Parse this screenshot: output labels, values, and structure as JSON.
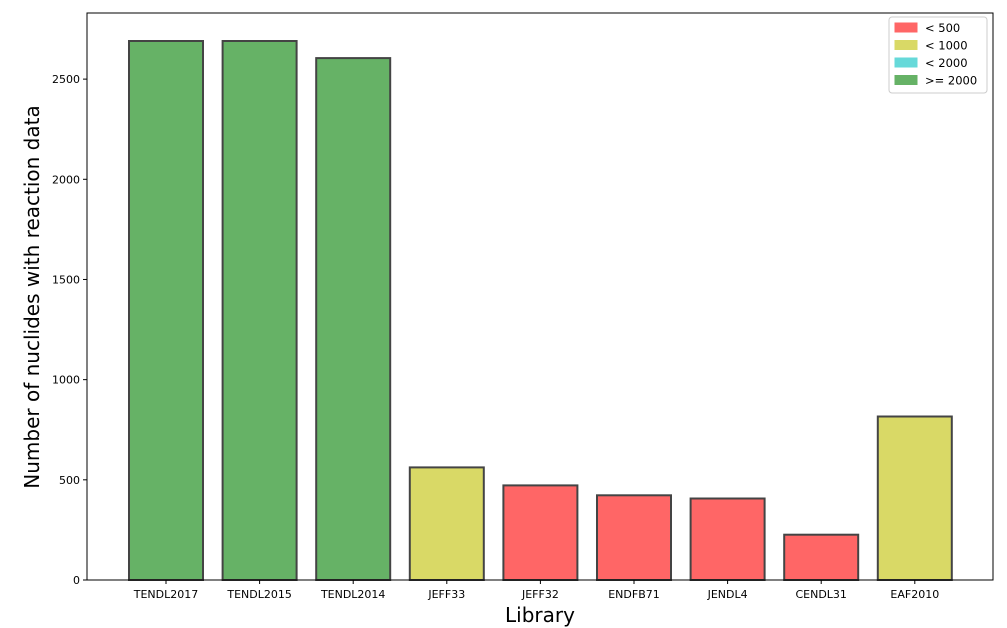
{
  "chart_data": {
    "type": "bar",
    "title": "",
    "xlabel": "Library",
    "ylabel": "Number of nuclides with reaction data",
    "categories": [
      "TENDL2017",
      "TENDL2015",
      "TENDL2014",
      "JEFF33",
      "JEFF32",
      "ENDFB71",
      "JENDL4",
      "CENDL31",
      "EAF2010"
    ],
    "values": [
      2690,
      2690,
      2605,
      562,
      472,
      423,
      407,
      226,
      816
    ],
    "bar_groups": [
      ">= 2000",
      ">= 2000",
      ">= 2000",
      "< 1000",
      "< 500",
      "< 500",
      "< 500",
      "< 500",
      "< 1000"
    ],
    "ylim": [
      0,
      2830
    ],
    "yticks": [
      0,
      500,
      1000,
      1500,
      2000,
      2500
    ],
    "grid": false,
    "legend_position": "top-right",
    "legend": [
      {
        "label": "< 500",
        "color": "#ff6666"
      },
      {
        "label": "< 1000",
        "color": "#d9d966"
      },
      {
        "label": "< 2000",
        "color": "#66d9d9"
      },
      {
        "label": ">= 2000",
        "color": "#66b266"
      }
    ]
  }
}
